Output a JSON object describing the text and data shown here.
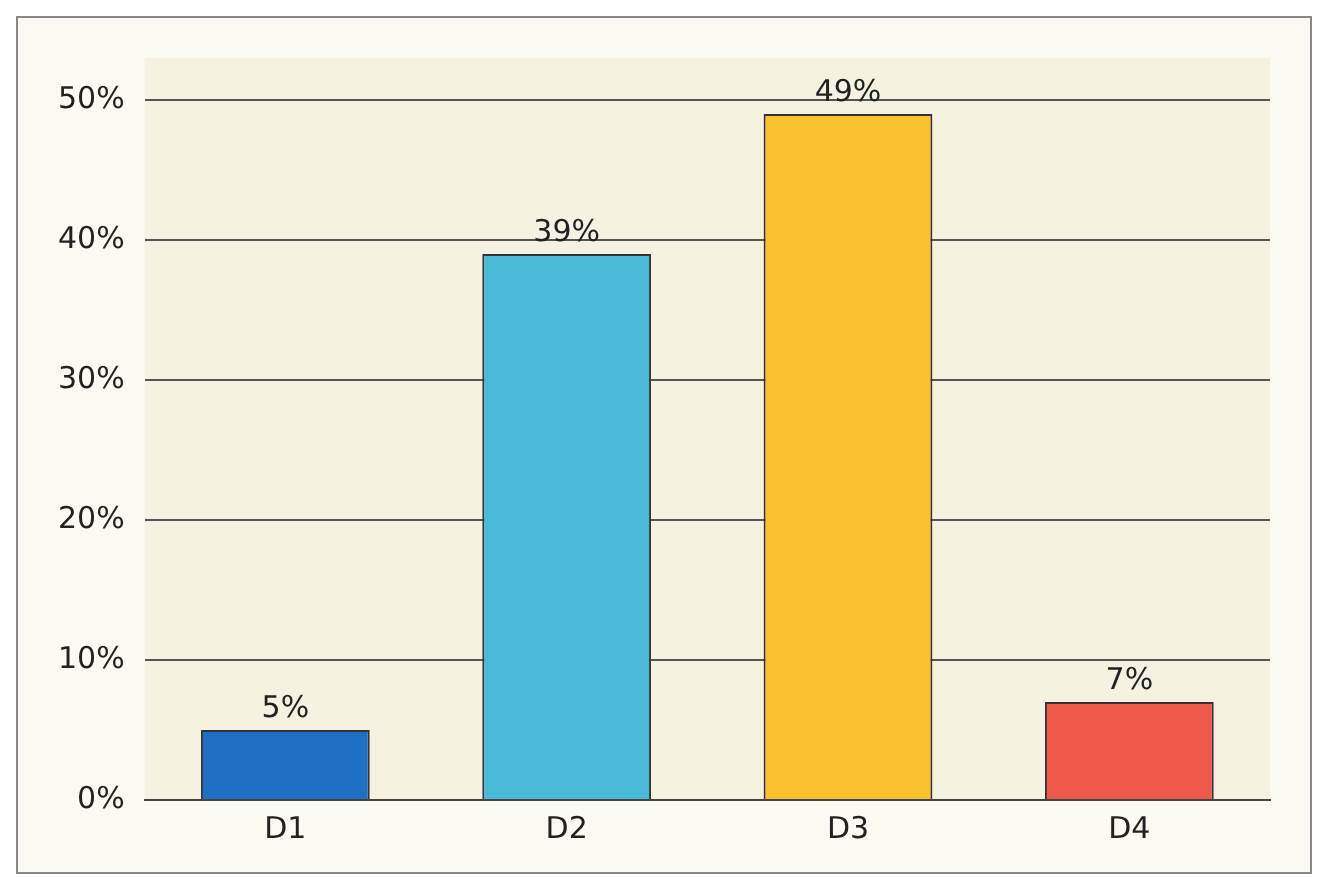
{
  "chart_data": {
    "type": "bar",
    "categories": [
      "D1",
      "D2",
      "D3",
      "D4"
    ],
    "values": [
      5,
      39,
      49,
      7
    ],
    "colors": [
      "#1f6fc4",
      "#4ab8d8",
      "#f9c22e",
      "#ee5a4a"
    ],
    "value_labels": [
      "5%",
      "39%",
      "49%",
      "7%"
    ],
    "ylim": [
      0,
      53
    ],
    "yticks": [
      {
        "value": 0,
        "label": "0%"
      },
      {
        "value": 10,
        "label": "10%"
      },
      {
        "value": 20,
        "label": "20%"
      },
      {
        "value": 30,
        "label": "30%"
      },
      {
        "value": 40,
        "label": "40%"
      },
      {
        "value": 50,
        "label": "50%"
      }
    ],
    "grid": "y",
    "legend": false
  }
}
